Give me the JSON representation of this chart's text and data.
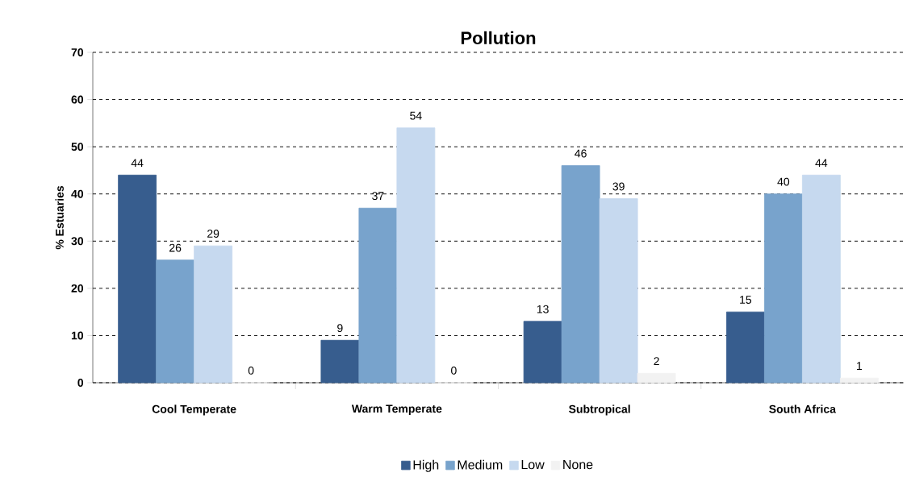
{
  "chart_data": {
    "type": "bar",
    "title": "Pollution",
    "ylabel": "% Estuaries",
    "categories": [
      "Cool Temperate",
      "Warm Temperate",
      "Subtropical",
      "South Africa"
    ],
    "series": [
      {
        "name": "High",
        "color": "#375d8e",
        "values": [
          44,
          9,
          13,
          15
        ]
      },
      {
        "name": "Medium",
        "color": "#78a3cc",
        "values": [
          26,
          37,
          46,
          40
        ]
      },
      {
        "name": "Low",
        "color": "#c6d9ef",
        "values": [
          29,
          54,
          39,
          44
        ]
      },
      {
        "name": "None",
        "color": "#f2f2f2",
        "values": [
          0,
          0,
          2,
          1
        ]
      }
    ],
    "ylim": [
      0,
      70
    ],
    "yticks": [
      0,
      10,
      20,
      30,
      40,
      50,
      60,
      70
    ],
    "grid": "y",
    "legend": "bottom",
    "data_labels": true
  }
}
